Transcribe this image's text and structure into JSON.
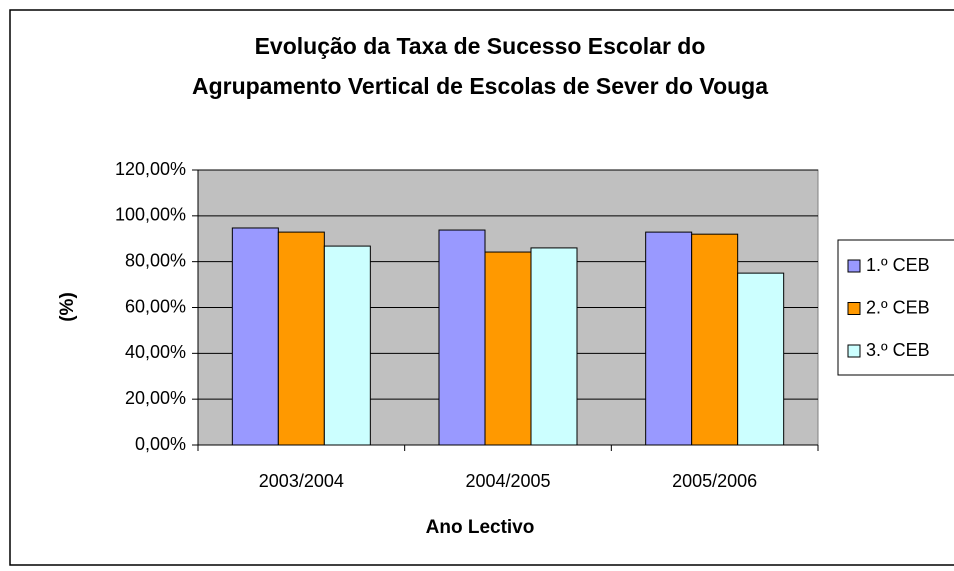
{
  "chart_data": {
    "type": "bar",
    "title": [
      "Evolução da Taxa de Sucesso Escolar do",
      "Agrupamento Vertical de Escolas de Sever do Vouga"
    ],
    "x_label": "Ano Lectivo",
    "y_label": "(%)",
    "categories": [
      "2003/2004",
      "2004/2005",
      "2005/2006"
    ],
    "series": [
      {
        "name": "1.º CEB",
        "color": "#9999ff",
        "values": [
          94.7,
          93.8,
          92.9
        ]
      },
      {
        "name": "2.º CEB",
        "color": "#ff9900",
        "values": [
          92.9,
          84.2,
          92
        ]
      },
      {
        "name": "3.º CEB",
        "color": "#ccffff",
        "values": [
          86.8,
          86,
          75
        ]
      }
    ],
    "ylim": [
      0,
      120
    ],
    "yticks": [
      {
        "value": 0,
        "label": "0,00%"
      },
      {
        "value": 20,
        "label": "20,00%"
      },
      {
        "value": 40,
        "label": "40,00%"
      },
      {
        "value": 60,
        "label": "60,00%"
      },
      {
        "value": 80,
        "label": "80,00%"
      },
      {
        "value": 100,
        "label": "100,00%"
      },
      {
        "value": 120,
        "label": "120,00%"
      }
    ],
    "grid": true,
    "legend": "right"
  }
}
